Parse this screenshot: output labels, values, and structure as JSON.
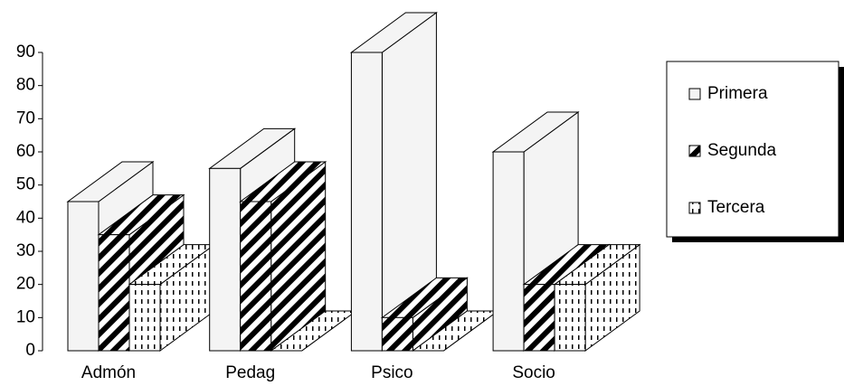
{
  "chart_data": {
    "type": "bar3d",
    "categories": [
      "Admón",
      "Pedag",
      "Psico",
      "Socio"
    ],
    "series": [
      {
        "name": "Primera",
        "color": "#f4f4f4",
        "values": [
          45,
          55,
          90,
          60
        ]
      },
      {
        "name": "Segunda",
        "color": "stripes",
        "values": [
          35,
          45,
          10,
          20
        ]
      },
      {
        "name": "Tercera",
        "color": "dots",
        "values": [
          20,
          0,
          0,
          20
        ]
      }
    ],
    "ylim": [
      0,
      90
    ],
    "yticks": [
      0,
      10,
      20,
      30,
      40,
      50,
      60,
      70,
      80,
      90
    ],
    "legend": "right"
  }
}
